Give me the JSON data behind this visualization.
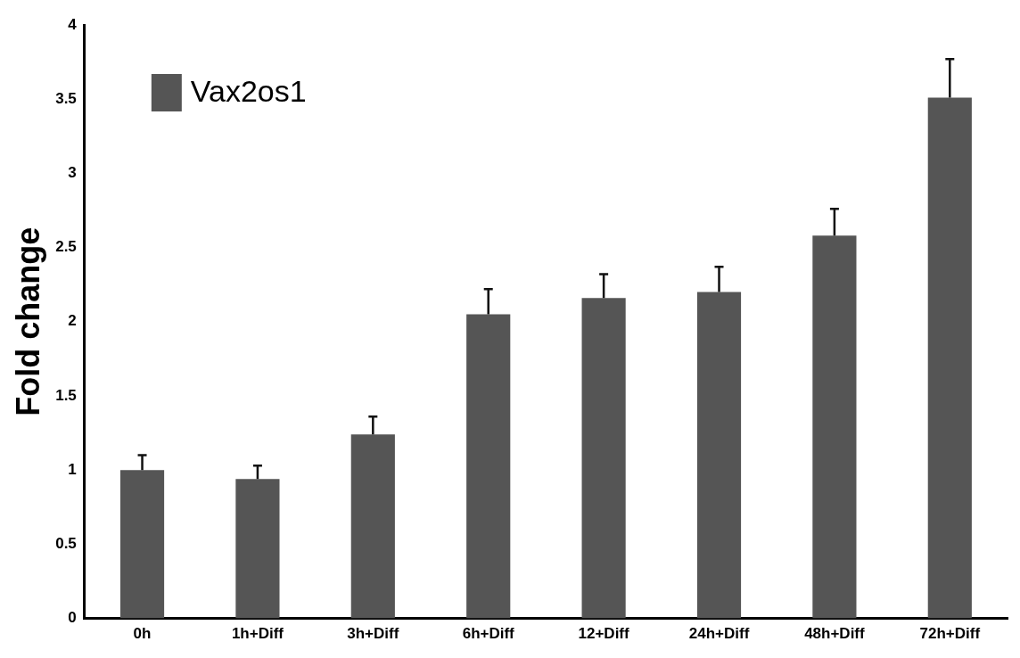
{
  "chart_data": {
    "type": "bar",
    "ylabel": "Fold change",
    "categories": [
      "0h",
      "1h+Diff",
      "3h+Diff",
      "6h+Diff",
      "12+Diff",
      "24h+Diff",
      "48h+Diff",
      "72h+Diff"
    ],
    "series": [
      {
        "name": "Vax2os1",
        "color": "#555555",
        "values": [
          1.0,
          0.94,
          1.24,
          2.05,
          2.16,
          2.2,
          2.58,
          3.51
        ],
        "errors": [
          [
            1.0,
            1.1
          ],
          [
            0.94,
            1.03
          ],
          [
            1.24,
            1.36
          ],
          [
            2.05,
            2.22
          ],
          [
            2.16,
            2.32
          ],
          [
            2.2,
            2.37
          ],
          [
            2.58,
            2.76
          ],
          [
            3.51,
            3.77
          ]
        ]
      }
    ],
    "ylim": [
      0,
      4
    ],
    "yticks": [
      0,
      0.5,
      1,
      1.5,
      2,
      2.5,
      3,
      3.5,
      4
    ],
    "grid": false,
    "legend": "top left"
  }
}
